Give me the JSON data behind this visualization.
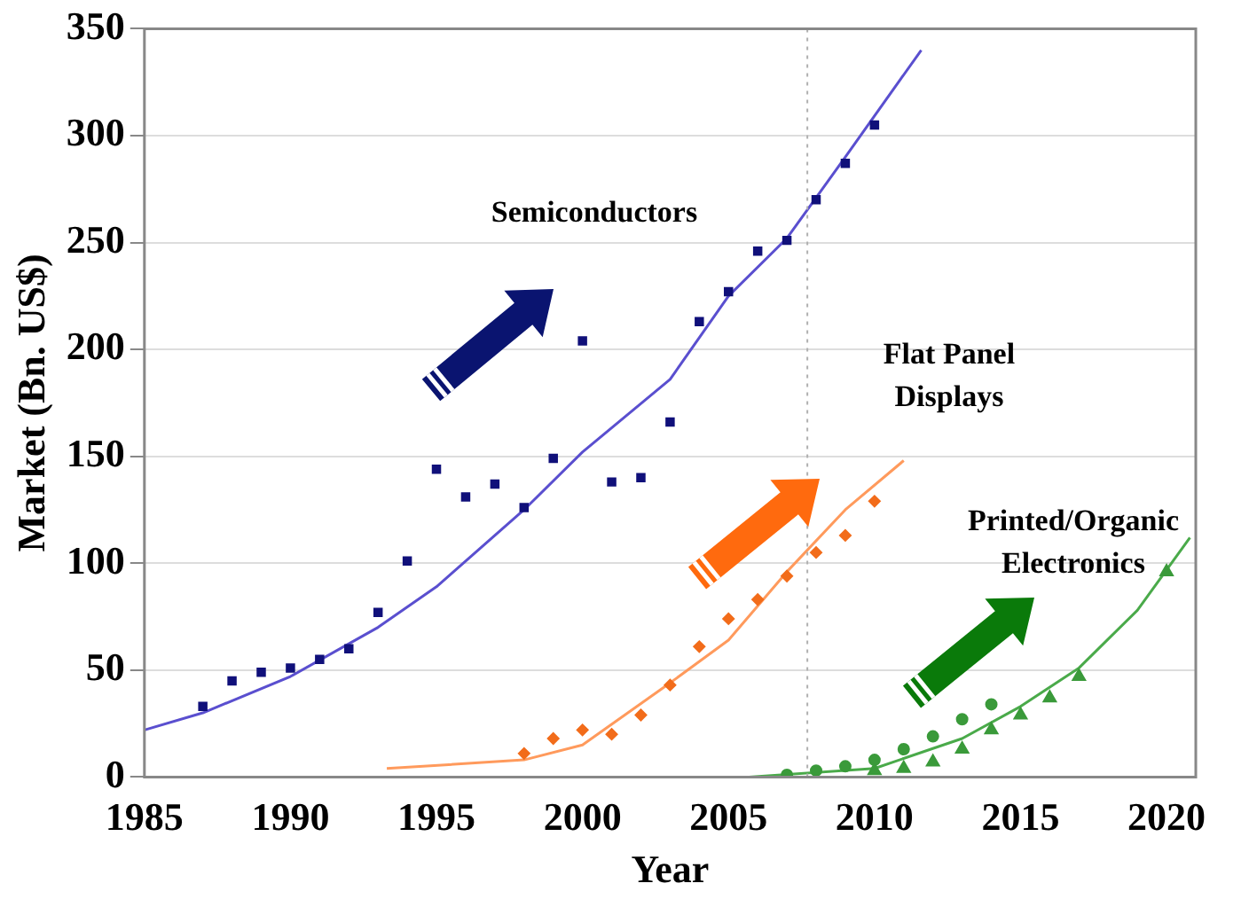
{
  "chart_data": {
    "type": "scatter",
    "xlabel": "Year",
    "ylabel": "Market (Bn. US$)",
    "xlim": [
      1985,
      2021
    ],
    "xticks": [
      1985,
      1990,
      1995,
      2000,
      2005,
      2010,
      2015,
      2020
    ],
    "ylim": [
      0,
      350
    ],
    "yticks": [
      0,
      50,
      100,
      150,
      200,
      250,
      300,
      350
    ],
    "grid": "y",
    "legend": false,
    "annotations": [
      "Semiconductors",
      "Flat Panel Displays",
      "Printed/Organic Electronics"
    ],
    "ref_lines": [
      {
        "axis": "x",
        "value": 2007.7,
        "color": "#b0b0b0",
        "line_style": "dotted"
      }
    ],
    "series": [
      {
        "type": "scatter",
        "marker": "square",
        "color": "#10107a",
        "x": [
          1987,
          1988,
          1989,
          1990,
          1991,
          1992,
          1993,
          1994,
          1995,
          1996,
          1997,
          1998,
          1999,
          2000,
          2001,
          2002,
          2003,
          2004,
          2005,
          2006,
          2007,
          2008,
          2009,
          2010
        ],
        "values": [
          33,
          45,
          49,
          51,
          55,
          60,
          77,
          101,
          144,
          131,
          137,
          126,
          149,
          204,
          138,
          140,
          166,
          213,
          227,
          246,
          251,
          270,
          287,
          305
        ]
      },
      {
        "type": "line",
        "marker": "none",
        "color": "#5a4fcf",
        "x": [
          1985,
          1987,
          1990,
          1993,
          1995,
          1998,
          2000,
          2003,
          2005,
          2007,
          2009,
          2011.6
        ],
        "values": [
          22,
          30,
          47,
          70,
          89,
          125,
          152,
          186,
          225,
          252,
          290,
          340
        ]
      },
      {
        "type": "scatter",
        "marker": "diamond",
        "color": "#f26c1a",
        "x": [
          1998,
          1999,
          2000,
          2001,
          2002,
          2003,
          2004,
          2005,
          2006,
          2007,
          2008,
          2009,
          2010
        ],
        "values": [
          11,
          18,
          22,
          20,
          29,
          43,
          61,
          74,
          83,
          94,
          105,
          113,
          129
        ]
      },
      {
        "type": "line",
        "marker": "none",
        "color": "#ff9a5c",
        "x": [
          1993.3,
          1998,
          2000,
          2003,
          2005,
          2007,
          2009,
          2011
        ],
        "values": [
          4,
          8,
          15,
          44,
          64,
          96,
          125,
          148
        ]
      },
      {
        "type": "scatter",
        "marker": "circle",
        "color": "#3a9a3a",
        "x": [
          2007,
          2008,
          2009,
          2010,
          2011,
          2012,
          2013,
          2014
        ],
        "values": [
          1,
          3,
          5,
          8,
          13,
          19,
          27,
          34
        ]
      },
      {
        "type": "scatter",
        "marker": "triangle",
        "color": "#3a9a3a",
        "x": [
          2010,
          2011,
          2012,
          2013,
          2014,
          2015,
          2016,
          2017,
          2020
        ],
        "values": [
          3,
          4,
          7,
          13,
          22,
          29,
          37,
          47,
          96
        ]
      },
      {
        "type": "line",
        "marker": "none",
        "color": "#4aaa4a",
        "x": [
          2005.7,
          2010,
          2013,
          2015,
          2017,
          2019,
          2020.8
        ],
        "values": [
          0,
          4,
          18,
          33,
          51,
          78,
          112
        ]
      }
    ]
  }
}
